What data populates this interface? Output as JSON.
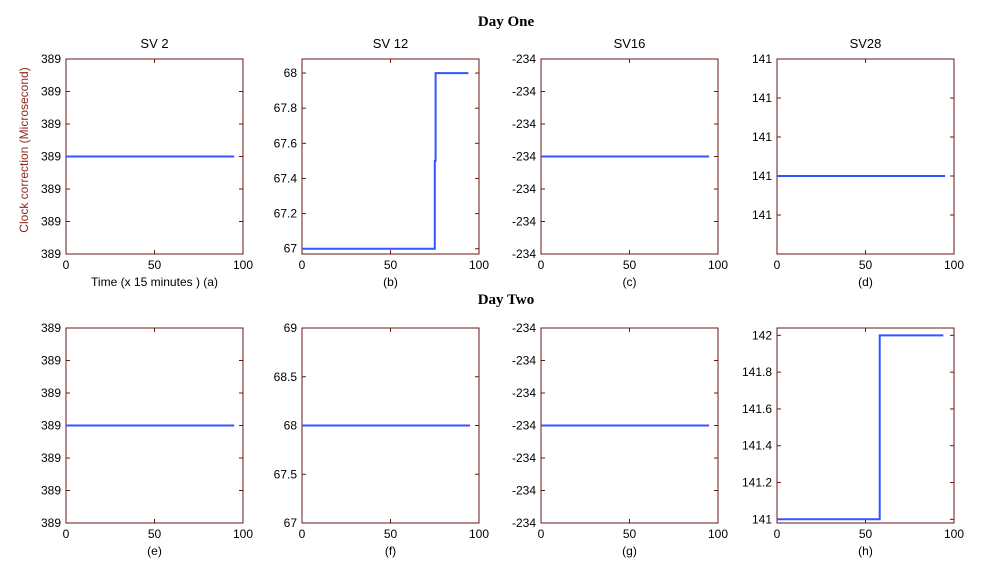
{
  "figure": {
    "row_titles": [
      "Day One",
      "Day Two"
    ],
    "ylabel": "Clock correction (Microsecond)",
    "line_color": "#3355ff",
    "axis_color": "#6b1414",
    "ylabel_color": "#8a2a1e"
  },
  "chart_data": [
    {
      "type": "line",
      "title": "SV 2",
      "xlabel": "Time (x 15 minutes ) (a)",
      "xlim": [
        0,
        100
      ],
      "xticks": [
        0,
        50,
        100
      ],
      "ylim": [
        0,
        6
      ],
      "yticks": [
        0,
        1,
        2,
        3,
        4,
        5,
        6
      ],
      "ytick_labels": [
        "389",
        "389",
        "389",
        "389",
        "389",
        "389",
        "389"
      ],
      "series": [
        {
          "x": [
            0,
            95
          ],
          "y": [
            3,
            3
          ]
        }
      ]
    },
    {
      "type": "line",
      "title": "SV 12",
      "xlabel": "(b)",
      "xlim": [
        0,
        100
      ],
      "xticks": [
        0,
        50,
        100
      ],
      "ylim": [
        66.97,
        68.08
      ],
      "yticks": [
        67,
        67.2,
        67.4,
        67.6,
        67.8,
        68
      ],
      "ytick_labels": [
        "67",
        "67.2",
        "67.4",
        "67.6",
        "67.8",
        "68"
      ],
      "series": [
        {
          "x": [
            0,
            75,
            75,
            75.5,
            75.5,
            94
          ],
          "y": [
            67,
            67,
            67.5,
            67.5,
            68,
            68
          ]
        }
      ]
    },
    {
      "type": "line",
      "title": "SV16",
      "xlabel": "(c)",
      "xlim": [
        0,
        100
      ],
      "xticks": [
        0,
        50,
        100
      ],
      "ylim": [
        0,
        6
      ],
      "yticks": [
        0,
        1,
        2,
        3,
        4,
        5,
        6
      ],
      "ytick_labels": [
        "-234",
        "-234",
        "-234",
        "-234",
        "-234",
        "-234",
        "-234"
      ],
      "series": [
        {
          "x": [
            0,
            95
          ],
          "y": [
            3,
            3
          ]
        }
      ]
    },
    {
      "type": "line",
      "title": "SV28",
      "xlabel": "(d)",
      "xlim": [
        0,
        100
      ],
      "xticks": [
        0,
        50,
        100
      ],
      "ylim": [
        -1,
        4
      ],
      "yticks": [
        0,
        1,
        2,
        3,
        4
      ],
      "ytick_labels": [
        "141",
        "141",
        "141",
        "141",
        "141"
      ],
      "series": [
        {
          "x": [
            0,
            95
          ],
          "y": [
            1,
            1
          ]
        }
      ]
    },
    {
      "type": "line",
      "title": "",
      "xlabel": "(e)",
      "xlim": [
        0,
        100
      ],
      "xticks": [
        0,
        50,
        100
      ],
      "ylim": [
        0,
        6
      ],
      "yticks": [
        0,
        1,
        2,
        3,
        4,
        5,
        6
      ],
      "ytick_labels": [
        "389",
        "389",
        "389",
        "389",
        "389",
        "389",
        "389"
      ],
      "series": [
        {
          "x": [
            0,
            95
          ],
          "y": [
            3,
            3
          ]
        }
      ]
    },
    {
      "type": "line",
      "title": "",
      "xlabel": "(f)",
      "xlim": [
        0,
        100
      ],
      "xticks": [
        0,
        50,
        100
      ],
      "ylim": [
        67,
        69
      ],
      "yticks": [
        67,
        67.5,
        68,
        68.5,
        69
      ],
      "ytick_labels": [
        "67",
        "67.5",
        "68",
        "68.5",
        "69"
      ],
      "series": [
        {
          "x": [
            0,
            95
          ],
          "y": [
            68,
            68
          ]
        }
      ]
    },
    {
      "type": "line",
      "title": "",
      "xlabel": "(g)",
      "xlim": [
        0,
        100
      ],
      "xticks": [
        0,
        50,
        100
      ],
      "ylim": [
        0,
        6
      ],
      "yticks": [
        0,
        1,
        2,
        3,
        4,
        5,
        6
      ],
      "ytick_labels": [
        "-234",
        "-234",
        "-234",
        "-234",
        "-234",
        "-234",
        "-234"
      ],
      "series": [
        {
          "x": [
            0,
            95
          ],
          "y": [
            3,
            3
          ]
        }
      ]
    },
    {
      "type": "line",
      "title": "",
      "xlabel": "(h)",
      "xlim": [
        0,
        100
      ],
      "xticks": [
        0,
        50,
        100
      ],
      "ylim": [
        140.98,
        142.04
      ],
      "yticks": [
        141,
        141.2,
        141.4,
        141.6,
        141.8,
        142
      ],
      "ytick_labels": [
        "141",
        "141.2",
        "141.4",
        "141.6",
        "141.8",
        "142"
      ],
      "series": [
        {
          "x": [
            0,
            58,
            58,
            94
          ],
          "y": [
            141,
            141,
            142,
            142
          ]
        }
      ]
    }
  ]
}
